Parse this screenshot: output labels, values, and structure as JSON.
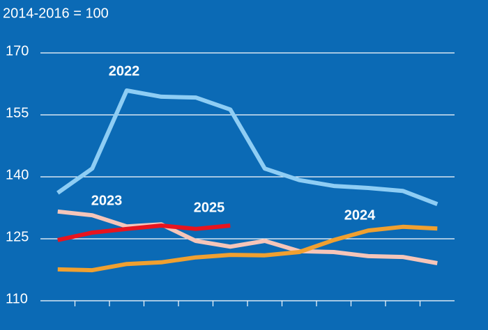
{
  "chart_data": {
    "type": "line",
    "subtitle": "2014-2016 = 100",
    "categories": [
      null,
      null,
      null,
      null,
      null,
      null,
      null,
      null,
      null,
      null,
      null,
      null
    ],
    "ylim": [
      110,
      170
    ],
    "yticks": [
      110,
      125,
      140,
      155,
      170
    ],
    "grid": true,
    "series": [
      {
        "name": "2022",
        "color": "#8ecdf4",
        "values": [
          136.1,
          142.0,
          160.9,
          159.4,
          159.2,
          156.3,
          142.0,
          139.2,
          137.8,
          137.3,
          136.6,
          133.4
        ]
      },
      {
        "name": "2023",
        "color": "#f5c5b9",
        "values": [
          131.6,
          130.7,
          128.0,
          128.5,
          124.5,
          123.1,
          124.5,
          122.0,
          121.8,
          120.8,
          120.6,
          119.1
        ]
      },
      {
        "name": "2024",
        "color": "#f0a030",
        "values": [
          117.6,
          117.4,
          118.9,
          119.3,
          120.5,
          121.1,
          121.0,
          121.8,
          124.7,
          127.0,
          127.9,
          127.5
        ]
      },
      {
        "name": "2025",
        "color": "#e8141e",
        "values": [
          124.7,
          126.5,
          127.4,
          128.2,
          127.4,
          128.2,
          null,
          null,
          null,
          null,
          null,
          null
        ]
      }
    ]
  }
}
